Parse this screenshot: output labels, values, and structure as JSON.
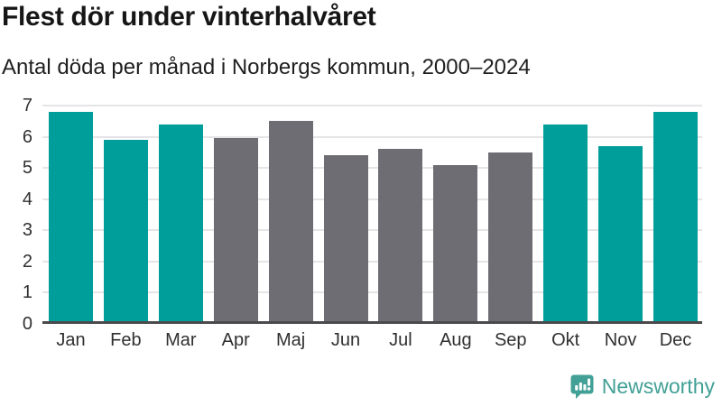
{
  "header": {
    "title": "Flest dör under vinterhalvåret",
    "subtitle": "Antal döda per månad i Norbergs kommun, 2000–2024"
  },
  "chart_data": {
    "type": "bar",
    "title": "Flest dör under vinterhalvåret",
    "subtitle": "Antal döda per månad i Norbergs kommun, 2000–2024",
    "categories": [
      "Jan",
      "Feb",
      "Mar",
      "Apr",
      "Maj",
      "Jun",
      "Jul",
      "Aug",
      "Sep",
      "Okt",
      "Nov",
      "Dec"
    ],
    "values": [
      6.8,
      5.9,
      6.4,
      5.95,
      6.5,
      5.4,
      5.6,
      5.1,
      5.5,
      6.4,
      5.7,
      6.8
    ],
    "highlighted_categories": [
      "Jan",
      "Feb",
      "Mar",
      "Okt",
      "Nov",
      "Dec"
    ],
    "highlight_meaning": "winter half-year months",
    "xlabel": "",
    "ylabel": "",
    "ylim": [
      0,
      7
    ],
    "yticks": [
      0,
      1,
      2,
      3,
      4,
      5,
      6,
      7
    ],
    "grid": "horizontal",
    "legend": "none",
    "colors": {
      "highlight": "#009e9b",
      "default": "#6e6d73",
      "gridline": "#e5e5e7",
      "baseline": "#4a4a4d"
    }
  },
  "footer": {
    "brand": "Newsworthy",
    "logo_icon": "newsworthy-speech-bubble-bar-chart",
    "brand_color": "#42a096"
  }
}
